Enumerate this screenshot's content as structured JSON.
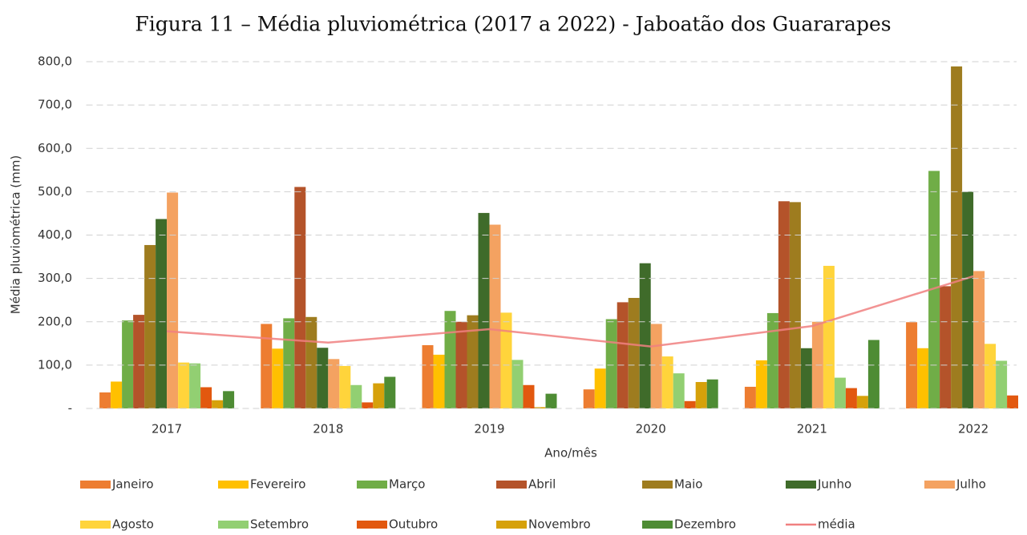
{
  "chart_data": {
    "type": "bar",
    "title": "Figura 11 – Média pluviométrica (2017 a 2022) - Jaboatão dos Guararapes",
    "x_label": "Ano/mês",
    "y_label": "Média pluviométrica (mm)",
    "categories": [
      "2017",
      "2018",
      "2019",
      "2020",
      "2021",
      "2022"
    ],
    "ylim": [
      0,
      800
    ],
    "yticks": [
      {
        "value": 0,
        "label": "-"
      },
      {
        "value": 100,
        "label": "100,0"
      },
      {
        "value": 200,
        "label": "200,0"
      },
      {
        "value": 300,
        "label": "300,0"
      },
      {
        "value": 400,
        "label": "400,0"
      },
      {
        "value": 500,
        "label": "500,0"
      },
      {
        "value": 600,
        "label": "600,0"
      },
      {
        "value": 700,
        "label": "700,0"
      },
      {
        "value": 800,
        "label": "800,0"
      }
    ],
    "grid": true,
    "legend": "bottom",
    "series": [
      {
        "name": "Janeiro",
        "color": "#ed7d31",
        "values": [
          37,
          195,
          146,
          44,
          50,
          199
        ]
      },
      {
        "name": "Fevereiro",
        "color": "#ffc000",
        "values": [
          62,
          138,
          124,
          92,
          111,
          139
        ]
      },
      {
        "name": "Março",
        "color": "#70ad47",
        "values": [
          203,
          208,
          225,
          206,
          220,
          548
        ]
      },
      {
        "name": "Abril",
        "color": "#b4532a",
        "values": [
          216,
          511,
          200,
          245,
          478,
          282
        ]
      },
      {
        "name": "Maio",
        "color": "#9e7c1f",
        "values": [
          377,
          211,
          215,
          255,
          476,
          789
        ]
      },
      {
        "name": "Junho",
        "color": "#3f6b2a",
        "values": [
          437,
          140,
          451,
          335,
          139,
          500
        ]
      },
      {
        "name": "Julho",
        "color": "#f4a261",
        "values": [
          498,
          114,
          424,
          195,
          200,
          317
        ]
      },
      {
        "name": "Agosto",
        "color": "#ffd43b",
        "values": [
          106,
          98,
          221,
          120,
          329,
          149
        ]
      },
      {
        "name": "Setembro",
        "color": "#92cf72",
        "values": [
          104,
          54,
          112,
          81,
          71,
          110
        ]
      },
      {
        "name": "Outubro",
        "color": "#e2580f",
        "values": [
          49,
          14,
          54,
          17,
          47,
          30
        ]
      },
      {
        "name": "Novembro",
        "color": "#d6a10a",
        "values": [
          19,
          58,
          3,
          61,
          29,
          null
        ]
      },
      {
        "name": "Dezembro",
        "color": "#4e8c34",
        "values": [
          40,
          73,
          34,
          67,
          158,
          null
        ]
      },
      {
        "name": "média",
        "type": "line",
        "color": "#f08080",
        "values": [
          178,
          152,
          183,
          143,
          190,
          305
        ]
      }
    ]
  }
}
